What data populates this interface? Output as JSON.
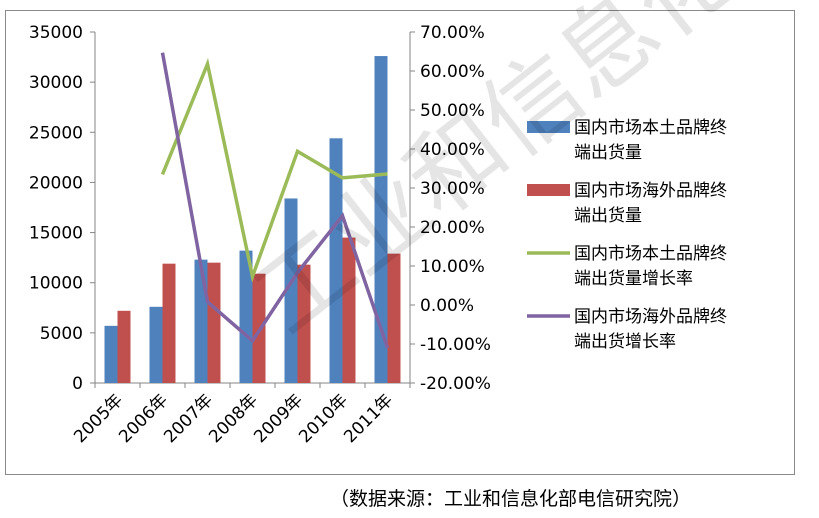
{
  "chart_data": {
    "type": "bar",
    "categories": [
      "2005年",
      "2006年",
      "2007年",
      "2008年",
      "2009年",
      "2010年",
      "2011年"
    ],
    "series": [
      {
        "name": "国内市场本土品牌终端出货量",
        "type": "bar",
        "axis": "left",
        "color": "#4F81BD",
        "values": [
          5700,
          7600,
          12300,
          13200,
          18400,
          24400,
          32600
        ]
      },
      {
        "name": "国内市场海外品牌终端出货量",
        "type": "bar",
        "axis": "left",
        "color": "#C0504D",
        "values": [
          7200,
          11900,
          12000,
          10900,
          11800,
          14500,
          12900
        ]
      },
      {
        "name": "国内市场本土品牌终端出货量增长率",
        "type": "line",
        "axis": "right",
        "color": "#9BBB59",
        "values": [
          null,
          33.5,
          61.8,
          7.3,
          39.4,
          32.6,
          33.6
        ]
      },
      {
        "name": "国内市场海外品牌终端出货增长率",
        "type": "line",
        "axis": "right",
        "color": "#8064A2",
        "values": [
          null,
          64.7,
          0.8,
          -9.2,
          8.3,
          22.9,
          -11.0
        ]
      }
    ],
    "y_left": {
      "min": 0,
      "max": 35000,
      "ticks": [
        "0",
        "5000",
        "10000",
        "15000",
        "20000",
        "25000",
        "30000",
        "35000"
      ]
    },
    "y_right": {
      "min": -20,
      "max": 70,
      "ticks": [
        "-20.00%",
        "-10.00%",
        "0.00%",
        "10.00%",
        "20.00%",
        "30.00%",
        "40.00%",
        "50.00%",
        "60.00%",
        "70.00%"
      ]
    },
    "legend": {
      "position": "right",
      "entries": [
        [
          "国内市场本土品牌终",
          "端出货量"
        ],
        [
          "国内市场海外品牌终",
          "端出货量"
        ],
        [
          "国内市场本土品牌终",
          "端出货量增长率"
        ],
        [
          "国内市场海外品牌终",
          "端出货增长率"
        ]
      ]
    },
    "grid": false
  },
  "source_note": "（数据来源：工业和信息化部电信研究院）",
  "watermark": "工业和信息化部电信研究院"
}
